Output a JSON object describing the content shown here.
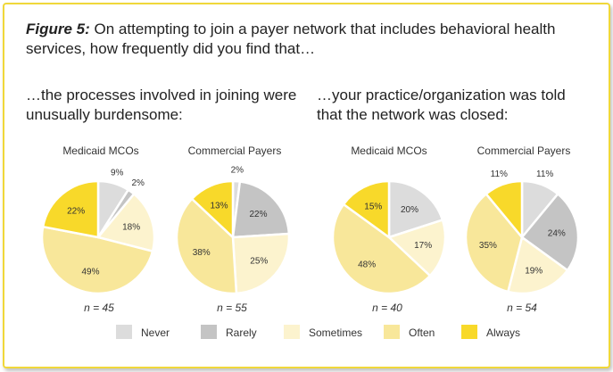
{
  "caption": {
    "figure_label": "Figure 5:",
    "text": "On attempting to join a payer network that includes behavioral health services, how frequently did you find that…"
  },
  "subtitles": [
    "…the processes involved in joining were unusually burdensome:",
    "…your practice/organization was told that the network was closed:"
  ],
  "colors": {
    "Never": "#dcdcdc",
    "Rarely": "#c4c4c4",
    "Sometimes": "#fcf3ce",
    "Often": "#f8e79a",
    "Always": "#f8d92a"
  },
  "legend": [
    "Never",
    "Rarely",
    "Sometimes",
    "Often",
    "Always"
  ],
  "chart_data": [
    {
      "type": "pie",
      "title": "Medicaid MCOs",
      "n_label": "n = 45",
      "categories": [
        "Never",
        "Rarely",
        "Sometimes",
        "Often",
        "Always"
      ],
      "values": [
        9,
        2,
        18,
        49,
        22
      ],
      "labels": [
        "9%",
        "2%",
        "18%",
        "49%",
        "22%"
      ]
    },
    {
      "type": "pie",
      "title": "Commercial Payers",
      "n_label": "n = 55",
      "categories": [
        "Never",
        "Rarely",
        "Sometimes",
        "Often",
        "Always"
      ],
      "values": [
        2,
        22,
        25,
        38,
        13
      ],
      "labels": [
        "2%",
        "22%",
        "25%",
        "38%",
        "13%"
      ]
    },
    {
      "type": "pie",
      "title": "Medicaid MCOs",
      "n_label": "n = 40",
      "categories": [
        "Never",
        "Rarely",
        "Sometimes",
        "Often",
        "Always"
      ],
      "values": [
        20,
        0,
        17,
        48,
        15
      ],
      "labels": [
        "20%",
        "",
        "17%",
        "48%",
        "15%"
      ]
    },
    {
      "type": "pie",
      "title": "Commercial Payers",
      "n_label": "n = 54",
      "categories": [
        "Never",
        "Rarely",
        "Sometimes",
        "Often",
        "Always"
      ],
      "values": [
        11,
        24,
        19,
        35,
        11
      ],
      "labels": [
        "11%",
        "24%",
        "19%",
        "35%",
        "11%"
      ]
    }
  ]
}
